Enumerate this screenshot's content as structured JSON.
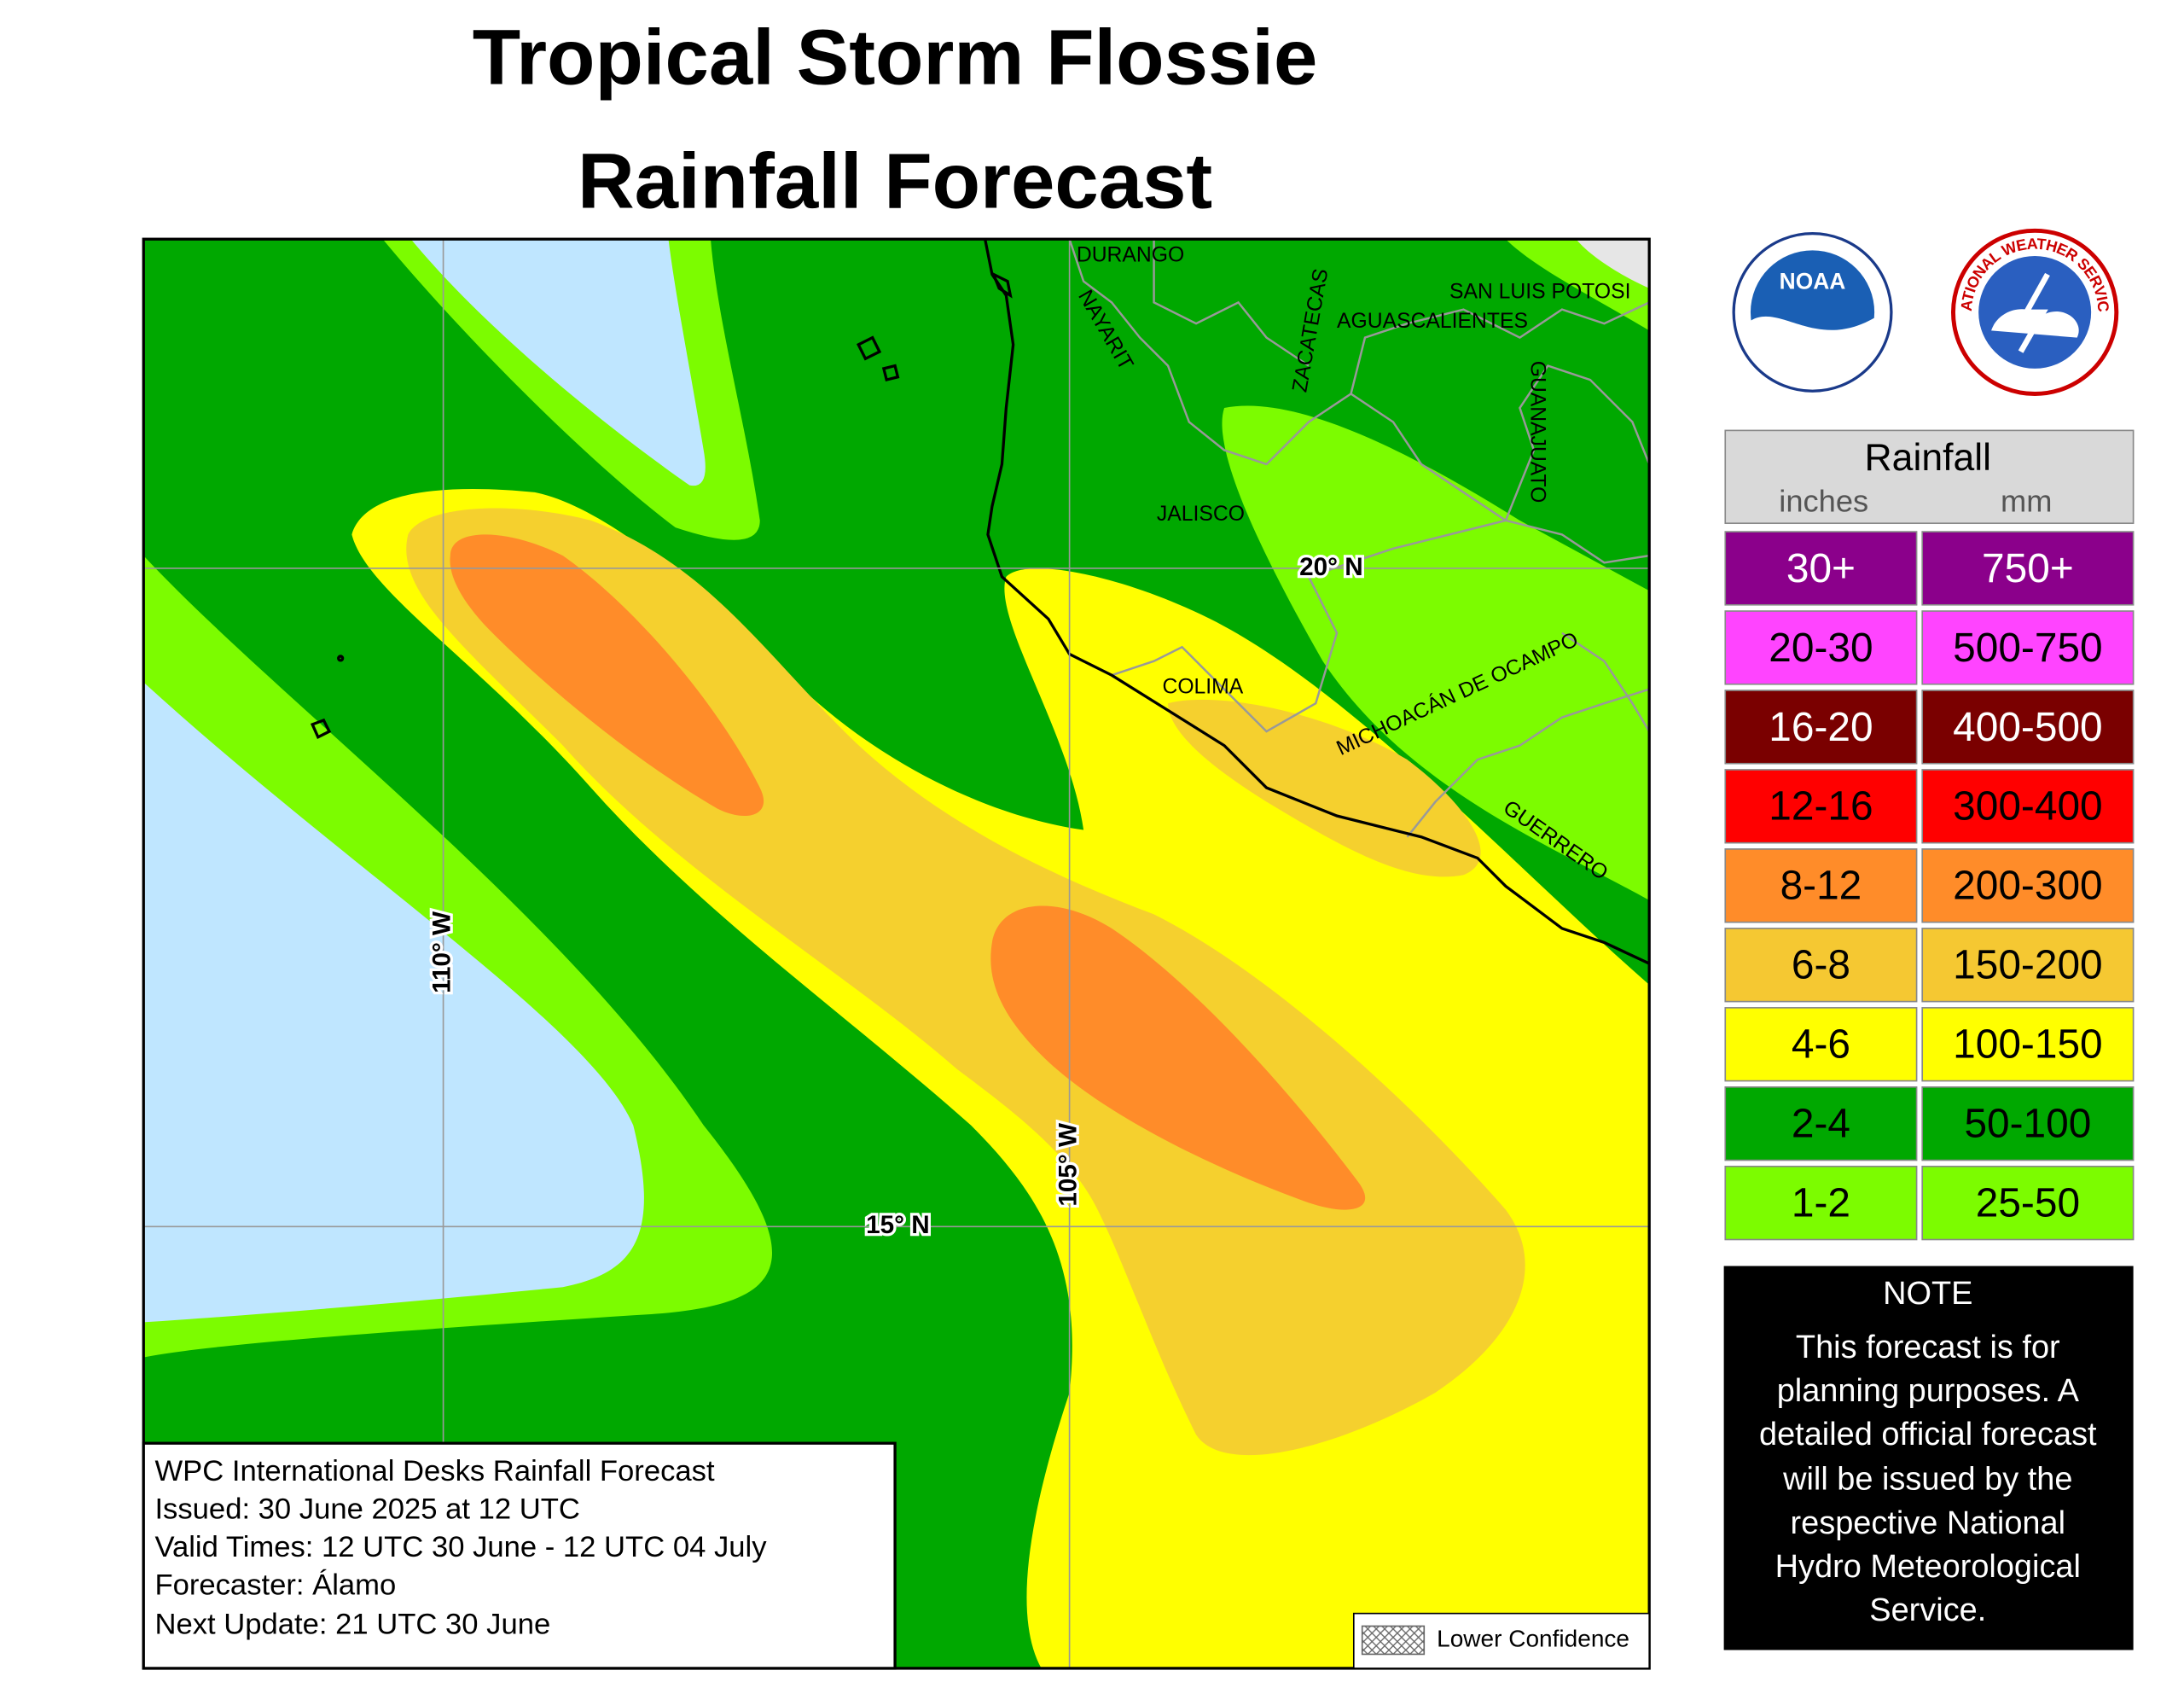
{
  "header": {
    "title_lines": [
      "Tropical Storm Flossie",
      "Rainfall Forecast"
    ]
  },
  "map": {
    "region_labels": [
      "DURANGO",
      "NAYARIT",
      "ZACATECAS",
      "AGUASCALIENTES",
      "SAN LUIS POTOSI",
      "GUANAJUATO",
      "JALISCO",
      "COLIMA",
      "MICHOACÁN DE OCAMPO",
      "GUERRERO"
    ],
    "grid_labels": [
      "20° N",
      "15° N",
      "110° W",
      "105° W"
    ]
  },
  "info_box": {
    "lines": [
      "WPC International Desks Rainfall Forecast",
      "Issued: 30 June 2025 at 12 UTC",
      "Valid Times: 12 UTC 30 June - 12 UTC 04 July",
      "Forecaster: Álamo",
      "Next Update: 21 UTC 30 June"
    ]
  },
  "confidence_key": "Lower Confidence",
  "logos": {
    "noaa": "NOAA",
    "nws": "NATIONAL WEATHER SERVICE"
  },
  "legend": {
    "title": "Rainfall",
    "units": [
      "inches",
      "mm"
    ],
    "rows": [
      {
        "inches": "30+",
        "mm": "750+"
      },
      {
        "inches": "20-30",
        "mm": "500-750"
      },
      {
        "inches": "16-20",
        "mm": "400-500"
      },
      {
        "inches": "12-16",
        "mm": "300-400"
      },
      {
        "inches": "8-12",
        "mm": "200-300"
      },
      {
        "inches": "6-8",
        "mm": "150-200"
      },
      {
        "inches": "4-6",
        "mm": "100-150"
      },
      {
        "inches": "2-4",
        "mm": "50-100"
      },
      {
        "inches": "1-2",
        "mm": "25-50"
      }
    ]
  },
  "note": {
    "title": "NOTE",
    "lines": [
      "This forecast is for",
      "planning purposes. A",
      "detailed official forecast",
      "will be issued by the",
      "respective National",
      "Hydro Meteorological",
      "Service."
    ]
  }
}
